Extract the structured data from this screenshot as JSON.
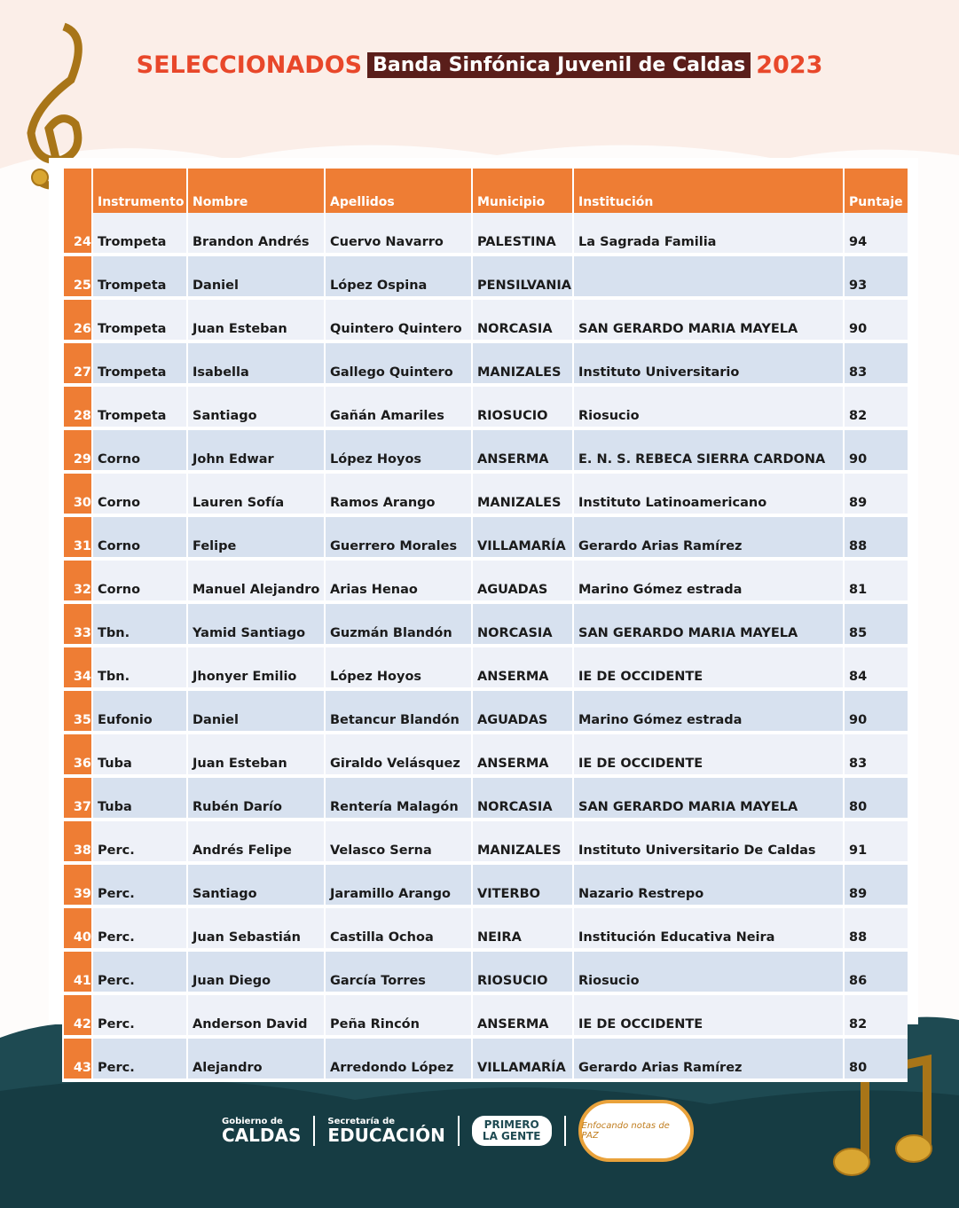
{
  "header": {
    "title_prefix": "SELECCIONADOS",
    "title_highlight": "Banda Sinfónica Juvenil de Caldas",
    "year": "2023"
  },
  "table": {
    "columns": [
      "Instrumento",
      "Nombre",
      "Apellidos",
      "Municipio",
      "Institución",
      "Puntaje"
    ],
    "rows": [
      [
        24,
        "Trompeta",
        "Brandon Andrés",
        "Cuervo Navarro",
        "PALESTINA",
        "La Sagrada Familia",
        94
      ],
      [
        25,
        "Trompeta",
        "Daniel",
        "López Ospina",
        "PENSILVANIA",
        null,
        93
      ],
      [
        26,
        "Trompeta",
        "Juan Esteban",
        "Quintero Quintero",
        "NORCASIA",
        "SAN GERARDO MARIA MAYELA",
        90
      ],
      [
        27,
        "Trompeta",
        "Isabella",
        "Gallego Quintero",
        "MANIZALES",
        "Instituto Universitario",
        83
      ],
      [
        28,
        "Trompeta",
        "Santiago",
        "Gañán Amariles",
        "RIOSUCIO",
        "Riosucio",
        82
      ],
      [
        29,
        "Corno",
        "John Edwar",
        "López Hoyos",
        "ANSERMA",
        "E. N. S. REBECA SIERRA CARDONA",
        90
      ],
      [
        30,
        "Corno",
        "Lauren Sofía",
        "Ramos Arango",
        "MANIZALES",
        "Instituto Latinoamericano",
        89
      ],
      [
        31,
        "Corno",
        "Felipe",
        "Guerrero Morales",
        "VILLAMARÍA",
        "Gerardo Arias Ramírez",
        88
      ],
      [
        32,
        "Corno",
        "Manuel Alejandro",
        "Arias Henao",
        "AGUADAS",
        "Marino Gómez estrada",
        81
      ],
      [
        33,
        "Tbn.",
        "Yamid Santiago",
        "Guzmán Blandón",
        "NORCASIA",
        "SAN GERARDO MARIA MAYELA",
        85
      ],
      [
        34,
        "Tbn.",
        "Jhonyer Emilio",
        "López Hoyos",
        "ANSERMA",
        "IE DE OCCIDENTE",
        84
      ],
      [
        35,
        "Eufonio",
        "Daniel",
        "Betancur Blandón",
        "AGUADAS",
        "Marino Gómez estrada",
        90
      ],
      [
        36,
        "Tuba",
        "Juan Esteban",
        "Giraldo Velásquez",
        "ANSERMA",
        "IE DE OCCIDENTE",
        83
      ],
      [
        37,
        "Tuba",
        "Rubén Darío",
        "Rentería Malagón",
        "NORCASIA",
        "SAN GERARDO MARIA MAYELA",
        80
      ],
      [
        38,
        "Perc.",
        "Andrés Felipe",
        "Velasco Serna",
        "MANIZALES",
        "Instituto Universitario De Caldas",
        91
      ],
      [
        39,
        "Perc.",
        "Santiago",
        "Jaramillo Arango",
        "VITERBO",
        "Nazario Restrepo",
        89
      ],
      [
        40,
        "Perc.",
        "Juan Sebastián",
        "Castilla Ochoa",
        "NEIRA",
        "Institución Educativa Neira",
        88
      ],
      [
        41,
        "Perc.",
        "Juan Diego",
        "García Torres",
        "RIOSUCIO",
        "Riosucio",
        86
      ],
      [
        42,
        "Perc.",
        "Anderson David",
        "Peña Rincón",
        "ANSERMA",
        "IE DE OCCIDENTE",
        82
      ],
      [
        43,
        "Perc.",
        "Alejandro",
        "Arredondo López",
        "VILLAMARÍA",
        "Gerardo Arias Ramírez",
        80
      ]
    ]
  },
  "footer": {
    "gov_small": "Gobierno de",
    "gov_big": "CALDAS",
    "sec_small": "Secretaría de",
    "sec_big": "EDUCACIÓN",
    "slogan_1": "PRIMERO",
    "slogan_2": "LA GENTE",
    "badge": "Enfocando notas de PAZ"
  }
}
